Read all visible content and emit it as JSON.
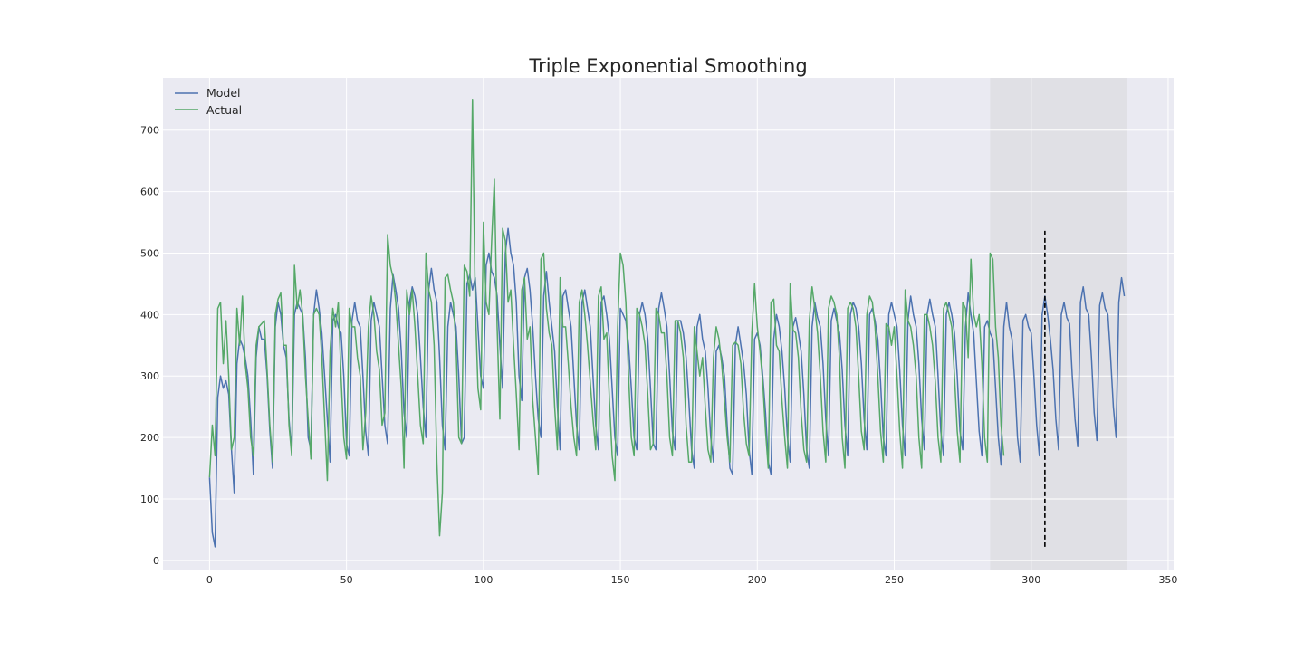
{
  "chart_data": {
    "type": "line",
    "title": "Triple Exponential Smoothing",
    "xlabel": "",
    "ylabel": "",
    "xlim": [
      -17,
      352
    ],
    "ylim": [
      -15,
      785
    ],
    "xticks": [
      0,
      50,
      100,
      150,
      200,
      250,
      300,
      350
    ],
    "yticks": [
      0,
      100,
      200,
      300,
      400,
      500,
      600,
      700
    ],
    "grid": true,
    "legend_placement": "top-left",
    "background_color": "#eaeaf2",
    "shaded_region": {
      "x_start": 285,
      "x_end": 335,
      "color": "#e0e0e5"
    },
    "vertical_line": {
      "x": 305,
      "y_start": 22,
      "y_end": 540,
      "style": "dashed",
      "color": "#000000"
    },
    "series": [
      {
        "name": "Model",
        "color": "#4c72b0",
        "x_start": 0,
        "values": [
          135,
          45,
          22,
          265,
          300,
          280,
          292,
          270,
          180,
          110,
          320,
          360,
          350,
          330,
          300,
          230,
          140,
          330,
          380,
          360,
          360,
          300,
          210,
          150,
          380,
          420,
          400,
          350,
          330,
          230,
          175,
          400,
          420,
          410,
          400,
          330,
          200,
          180,
          400,
          440,
          410,
          370,
          300,
          230,
          160,
          390,
          400,
          380,
          370,
          300,
          190,
          170,
          390,
          420,
          390,
          380,
          300,
          210,
          170,
          390,
          420,
          400,
          380,
          300,
          220,
          190,
          410,
          465,
          440,
          410,
          340,
          240,
          200,
          420,
          445,
          430,
          400,
          330,
          250,
          200,
          440,
          475,
          440,
          420,
          330,
          220,
          180,
          380,
          420,
          400,
          380,
          300,
          190,
          200,
          450,
          465,
          440,
          460,
          380,
          300,
          280,
          480,
          500,
          470,
          460,
          430,
          350,
          280,
          500,
          540,
          500,
          480,
          420,
          300,
          260,
          460,
          475,
          440,
          380,
          300,
          230,
          200,
          430,
          470,
          420,
          380,
          340,
          250,
          180,
          430,
          440,
          410,
          380,
          300,
          220,
          180,
          420,
          440,
          410,
          380,
          300,
          220,
          180,
          420,
          430,
          400,
          360,
          280,
          200,
          170,
          410,
          400,
          390,
          350,
          280,
          200,
          180,
          400,
          420,
          400,
          360,
          280,
          190,
          180,
          410,
          435,
          410,
          380,
          300,
          210,
          180,
          390,
          390,
          370,
          330,
          260,
          180,
          150,
          380,
          400,
          360,
          340,
          280,
          200,
          160,
          340,
          350,
          330,
          300,
          220,
          150,
          140,
          350,
          380,
          350,
          320,
          270,
          180,
          140,
          360,
          370,
          350,
          300,
          240,
          160,
          140,
          360,
          400,
          380,
          340,
          280,
          200,
          160,
          380,
          395,
          370,
          340,
          270,
          180,
          150,
          380,
          420,
          395,
          380,
          320,
          230,
          170,
          390,
          410,
          390,
          370,
          310,
          220,
          170,
          400,
          420,
          410,
          380,
          320,
          230,
          180,
          400,
          410,
          390,
          360,
          290,
          200,
          170,
          400,
          420,
          400,
          380,
          310,
          220,
          170,
          390,
          430,
          400,
          380,
          320,
          230,
          180,
          400,
          425,
          400,
          380,
          300,
          210,
          170,
          400,
          420,
          400,
          370,
          300,
          210,
          180,
          380,
          435,
          400,
          370,
          290,
          210,
          170,
          380,
          390,
          370,
          360,
          280,
          200,
          155,
          380,
          420,
          380,
          360,
          290,
          200,
          160,
          390,
          400,
          380,
          370,
          300,
          220,
          170,
          400,
          430,
          400,
          360,
          310,
          230,
          180,
          400,
          420,
          395,
          385,
          300,
          230,
          185,
          420,
          445,
          410,
          400,
          330,
          240,
          195,
          415,
          435,
          410,
          400,
          330,
          250,
          200,
          420,
          460,
          430
        ]
      },
      {
        "name": "Actual",
        "color": "#55a868",
        "x_start": 0,
        "values": [
          135,
          220,
          170,
          410,
          420,
          320,
          390,
          300,
          180,
          200,
          410,
          350,
          430,
          320,
          280,
          200,
          170,
          350,
          380,
          385,
          390,
          310,
          220,
          160,
          400,
          425,
          435,
          350,
          350,
          220,
          170,
          480,
          410,
          440,
          400,
          300,
          230,
          165,
          400,
          410,
          400,
          330,
          230,
          130,
          340,
          410,
          380,
          420,
          300,
          200,
          165,
          410,
          380,
          380,
          330,
          300,
          180,
          240,
          380,
          430,
          400,
          340,
          310,
          220,
          240,
          530,
          480,
          460,
          420,
          350,
          280,
          150,
          440,
          400,
          440,
          380,
          300,
          220,
          190,
          500,
          440,
          420,
          350,
          160,
          40,
          110,
          460,
          465,
          440,
          420,
          350,
          200,
          190,
          480,
          470,
          430,
          750,
          420,
          280,
          245,
          550,
          420,
          400,
          520,
          620,
          380,
          230,
          540,
          520,
          420,
          440,
          350,
          270,
          180,
          440,
          460,
          360,
          380,
          260,
          200,
          140,
          490,
          500,
          410,
          370,
          350,
          250,
          180,
          460,
          380,
          380,
          320,
          250,
          200,
          170,
          420,
          440,
          400,
          350,
          290,
          230,
          180,
          430,
          445,
          360,
          370,
          260,
          170,
          130,
          380,
          500,
          480,
          420,
          300,
          200,
          170,
          410,
          400,
          380,
          350,
          270,
          180,
          190,
          410,
          400,
          370,
          370,
          300,
          200,
          170,
          390,
          390,
          370,
          330,
          220,
          160,
          160,
          380,
          340,
          300,
          330,
          250,
          180,
          160,
          330,
          380,
          360,
          320,
          260,
          200,
          160,
          350,
          355,
          350,
          320,
          240,
          190,
          170,
          370,
          450,
          380,
          340,
          290,
          210,
          150,
          420,
          425,
          350,
          340,
          260,
          200,
          150,
          450,
          375,
          370,
          330,
          240,
          180,
          160,
          390,
          445,
          410,
          370,
          300,
          210,
          160,
          410,
          430,
          420,
          400,
          330,
          200,
          150,
          410,
          420,
          410,
          380,
          300,
          210,
          180,
          400,
          430,
          420,
          380,
          300,
          210,
          160,
          385,
          380,
          350,
          380,
          300,
          210,
          150,
          440,
          390,
          380,
          350,
          300,
          200,
          150,
          400,
          400,
          380,
          350,
          290,
          200,
          160,
          410,
          420,
          400,
          380,
          300,
          210,
          160,
          420,
          410,
          330,
          490,
          400,
          380,
          400,
          320,
          200,
          160,
          500,
          490,
          380,
          330,
          220,
          170
        ]
      }
    ]
  }
}
